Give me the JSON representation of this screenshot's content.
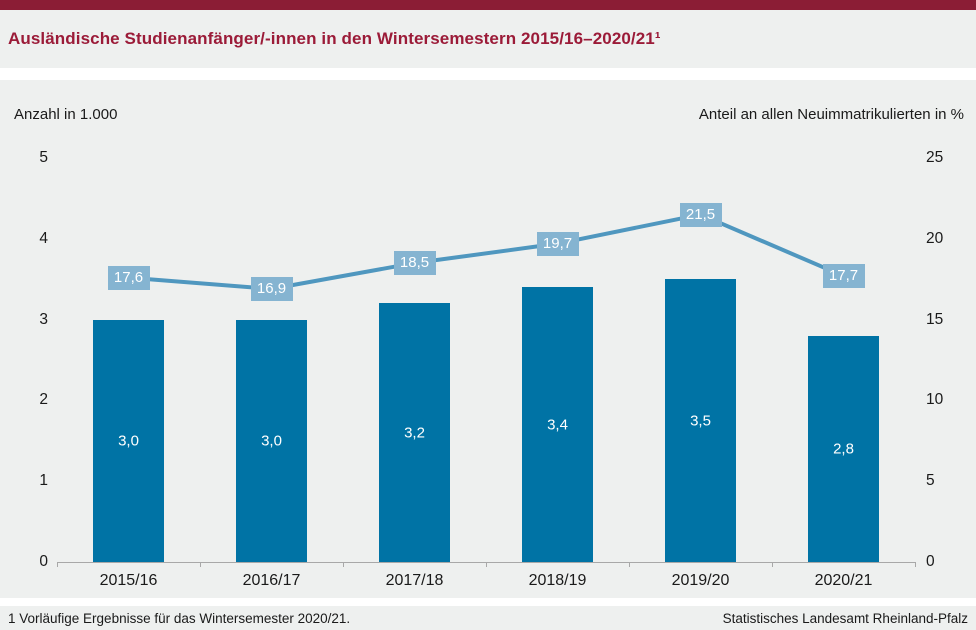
{
  "header": {
    "title": "Ausländische Studienanfänger/-innen in den Wintersemestern 2015/16–2020/21¹"
  },
  "chart_data": {
    "type": "bar",
    "subtype": "bar-line-combo",
    "categories": [
      "2015/16",
      "2016/17",
      "2017/18",
      "2018/19",
      "2019/20",
      "2020/21"
    ],
    "series": [
      {
        "name": "Anzahl in 1.000",
        "type": "bar",
        "axis": "left",
        "values": [
          3.0,
          3.0,
          3.2,
          3.4,
          3.5,
          2.8
        ],
        "labels": [
          "3,0",
          "3,0",
          "3,2",
          "3,4",
          "3,5",
          "2,8"
        ]
      },
      {
        "name": "Anteil an allen Neuimmatrikulierten in %",
        "type": "line",
        "axis": "right",
        "values": [
          17.6,
          16.9,
          18.5,
          19.7,
          21.5,
          17.7
        ],
        "labels": [
          "17,6",
          "16,9",
          "18,5",
          "19,7",
          "21,5",
          "17,7"
        ]
      }
    ],
    "left_axis": {
      "label": "Anzahl in 1.000",
      "min": 0,
      "max": 5,
      "ticks": [
        0,
        1,
        2,
        3,
        4,
        5
      ]
    },
    "right_axis": {
      "label": "Anteil an allen Neuimmatrikulierten in %",
      "min": 0,
      "max": 25,
      "ticks": [
        0,
        5,
        10,
        15,
        20,
        25
      ]
    },
    "grid": false,
    "legend": "none"
  },
  "footer": {
    "footnote": "1 Vorläufige Ergebnisse für das Wintersemester 2020/21.",
    "source": "Statistisches Landesamt Rheinland-Pfalz"
  },
  "colors": {
    "accent": "#8b1d35",
    "accent_text": "#9b1b38",
    "band_bg": "#eef0ef",
    "bar": "#0073a5",
    "line": "#4f97bf",
    "point_label_bg": "#85b4d1",
    "axis_line": "#a8a8a8"
  }
}
